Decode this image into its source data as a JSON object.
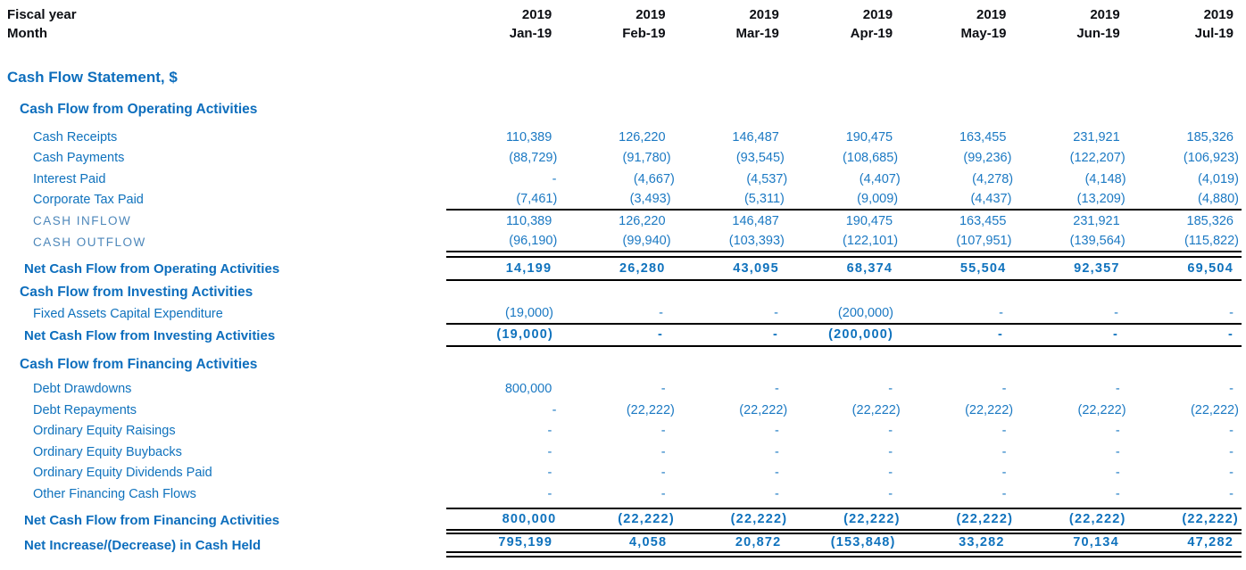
{
  "report_title": "Cash Flow Statement, $",
  "colors": {
    "accent_blue": "#0d6ebd",
    "value_blue": "#1b79c3",
    "muted_label_blue": "#4d87ba",
    "header_text": "#0d0f14",
    "rule": "#000000"
  },
  "columns": {
    "fiscal_year_label": "Fiscal year",
    "month_label": "Month",
    "years": [
      "2019",
      "2019",
      "2019",
      "2019",
      "2019",
      "2019",
      "2019"
    ],
    "months": [
      "Jan-19",
      "Feb-19",
      "Mar-19",
      "Apr-19",
      "May-19",
      "Jun-19",
      "Jul-19"
    ]
  },
  "table": {
    "rows": [
      {
        "type": "colheader",
        "name": "fiscal-year-header-row",
        "label": "Fiscal year",
        "values": [
          "2019",
          "2019",
          "2019",
          "2019",
          "2019",
          "2019",
          "2019"
        ]
      },
      {
        "type": "colheader",
        "name": "month-header-row",
        "label": "Month",
        "values": [
          "Jan-19",
          "Feb-19",
          "Mar-19",
          "Apr-19",
          "May-19",
          "Jun-19",
          "Jul-19"
        ]
      },
      {
        "type": "title",
        "name": "report-title",
        "label": "Cash Flow Statement, $"
      },
      {
        "type": "section",
        "name": "section-operating-activities",
        "cls": "first",
        "label": "Cash Flow from Operating Activities"
      },
      {
        "type": "data",
        "name": "row-cash-receipts",
        "label": "Cash Receipts",
        "values": [
          "110,389",
          "126,220",
          "146,487",
          "190,475",
          "163,455",
          "231,921",
          "185,326"
        ]
      },
      {
        "type": "data",
        "name": "row-cash-payments",
        "label": "Cash Payments",
        "values": [
          "(88,729)",
          "(91,780)",
          "(93,545)",
          "(108,685)",
          "(99,236)",
          "(122,207)",
          "(106,923)"
        ]
      },
      {
        "type": "data",
        "name": "row-interest-paid",
        "label": "Interest Paid",
        "values": [
          "-",
          "(4,667)",
          "(4,537)",
          "(4,407)",
          "(4,278)",
          "(4,148)",
          "(4,019)"
        ]
      },
      {
        "type": "data",
        "name": "row-corporate-tax-paid",
        "label": "Corporate Tax Paid",
        "rule_bottom": "single",
        "values": [
          "(7,461)",
          "(3,493)",
          "(5,311)",
          "(9,009)",
          "(4,437)",
          "(13,209)",
          "(4,880)"
        ]
      },
      {
        "type": "subtle",
        "name": "row-cash-inflow",
        "label": "CASH INFLOW",
        "values": [
          "110,389",
          "126,220",
          "146,487",
          "190,475",
          "163,455",
          "231,921",
          "185,326"
        ]
      },
      {
        "type": "subtle",
        "name": "row-cash-outflow",
        "label": "CASH OUTFLOW",
        "rule_bottom": "single",
        "values": [
          "(96,190)",
          "(99,940)",
          "(103,393)",
          "(122,101)",
          "(107,951)",
          "(139,564)",
          "(115,822)"
        ]
      },
      {
        "type": "net",
        "name": "row-net-operating",
        "cls": "gap",
        "rule_top": true,
        "rule_bottom": "single",
        "label": "Net Cash Flow from Operating Activities",
        "values": [
          "14,199",
          "26,280",
          "43,095",
          "68,374",
          "55,504",
          "92,357",
          "69,504"
        ]
      },
      {
        "type": "section",
        "name": "section-investing-activities",
        "cls": "inv",
        "label": "Cash Flow from Investing Activities"
      },
      {
        "type": "data",
        "name": "row-fixed-assets-capex",
        "label": "Fixed Assets Capital Expenditure",
        "rule_bottom": "single",
        "values": [
          "(19,000)",
          "-",
          "-",
          "(200,000)",
          "-",
          "-",
          "-"
        ]
      },
      {
        "type": "net",
        "name": "row-net-investing",
        "cls": "netinv",
        "rule_bottom": "single",
        "label": "Net Cash Flow from Investing Activities",
        "values": [
          "(19,000)",
          "-",
          "-",
          "(200,000)",
          "-",
          "-",
          "-"
        ]
      },
      {
        "type": "section",
        "name": "section-financing-activities",
        "cls": "fin",
        "label": "Cash Flow from Financing Activities"
      },
      {
        "type": "data",
        "name": "row-debt-drawdowns",
        "label": "Debt Drawdowns",
        "values": [
          "800,000",
          "-",
          "-",
          "-",
          "-",
          "-",
          "-"
        ]
      },
      {
        "type": "data",
        "name": "row-debt-repayments",
        "label": "Debt Repayments",
        "values": [
          "-",
          "(22,222)",
          "(22,222)",
          "(22,222)",
          "(22,222)",
          "(22,222)",
          "(22,222)"
        ]
      },
      {
        "type": "data",
        "name": "row-ordinary-equity-raisings",
        "label": "Ordinary Equity Raisings",
        "values": [
          "-",
          "-",
          "-",
          "-",
          "-",
          "-",
          "-"
        ]
      },
      {
        "type": "data",
        "name": "row-ordinary-equity-buybacks",
        "label": "Ordinary Equity Buybacks",
        "values": [
          "-",
          "-",
          "-",
          "-",
          "-",
          "-",
          "-"
        ]
      },
      {
        "type": "data",
        "name": "row-ordinary-equity-dividends-paid",
        "label": "Ordinary Equity Dividends Paid",
        "values": [
          "-",
          "-",
          "-",
          "-",
          "-",
          "-",
          "-"
        ]
      },
      {
        "type": "data",
        "name": "row-other-financing-cash-flows",
        "label": "Other Financing Cash Flows",
        "values": [
          "-",
          "-",
          "-",
          "-",
          "-",
          "-",
          "-"
        ]
      },
      {
        "type": "net",
        "name": "row-net-financing",
        "cls": "netfin",
        "rule_top": true,
        "rule_bottom": "double",
        "label": "Net Cash Flow from Financing Activities",
        "values": [
          "800,000",
          "(22,222)",
          "(22,222)",
          "(22,222)",
          "(22,222)",
          "(22,222)",
          "(22,222)"
        ]
      },
      {
        "type": "net",
        "name": "row-net-increase-in-cash-held",
        "cls": "netinc",
        "rule_bottom": "thick",
        "label": "Net Increase/(Decrease) in Cash Held",
        "values": [
          "795,199",
          "4,058",
          "20,872",
          "(153,848)",
          "33,282",
          "70,134",
          "47,282"
        ]
      }
    ]
  }
}
